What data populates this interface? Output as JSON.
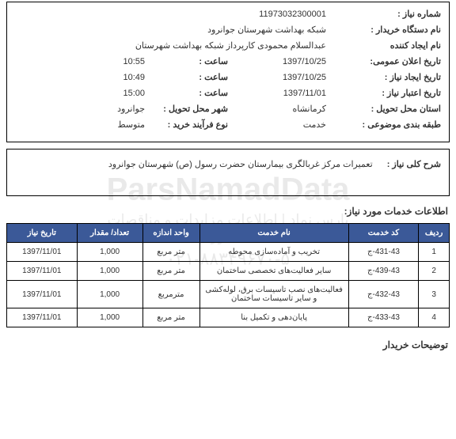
{
  "watermark": {
    "title": "ParsNamadData",
    "sub": "پارس نماد | اطلاعات مزایدات و مناقصات کشور",
    "phone": "۰۲۱-۸۸۳۴۹۶۷۰-۵"
  },
  "header": {
    "reqNumLabel": "شماره نیاز :",
    "reqNumValue": "11973032300001",
    "buyerOrgLabel": "نام دستگاه خریدار :",
    "buyerOrgValue": "شبکه بهداشت شهرستان جوانرود",
    "creatorLabel": "نام ایجاد کننده",
    "creatorValue": "عبدالسلام محمودی کارپرداز شبکه بهداشت شهرستان",
    "publicDateLabel": "تاریخ اعلان عمومی:",
    "publicDateValue": "1397/10/25",
    "publicTimeLabel": "ساعت :",
    "publicTimeValue": "10:55",
    "createDateLabel": "تاریخ ایجاد نیاز :",
    "createDateValue": "1397/10/25",
    "createTimeLabel": "ساعت :",
    "createTimeValue": "10:49",
    "validDateLabel": "تاریخ اعتبار نیاز :",
    "validDateValue": "1397/11/01",
    "validTimeLabel": "ساعت :",
    "validTimeValue": "15:00",
    "deliveryProvLabel": "استان محل تحویل :",
    "deliveryProvValue": "کرمانشاه",
    "deliveryCityLabel": "شهر محل تحویل :",
    "deliveryCityValue": "جوانرود",
    "categoryLabel": "طبقه بندی موضوعی :",
    "categoryValue": "خدمت",
    "procTypeLabel": "نوع فرآیند خرید :",
    "procTypeValue": "متوسط"
  },
  "description": {
    "label": "شرح کلی نیاز :",
    "value": "تعمیرات مرکز غربالگری بیمارستان حضرت رسول (ص) شهرستان جوانرود"
  },
  "servicesTitle": "اطلاعات خدمات مورد نیاز:",
  "table": {
    "headers": {
      "row": "ردیف",
      "code": "کد خدمت",
      "name": "نام خدمت",
      "unit": "واحد اندازه",
      "qty": "تعداد/ مقدار",
      "date": "تاریخ نیاز"
    },
    "rows": [
      {
        "row": "1",
        "code": "431-43-ج",
        "name": "تخریب و آماده‌سازی محوطه",
        "unit": "متر مربع",
        "qty": "1,000",
        "date": "1397/11/01"
      },
      {
        "row": "2",
        "code": "439-43-ج",
        "name": "سایر فعالیت‌های تخصصی ساختمان",
        "unit": "متر مربع",
        "qty": "1,000",
        "date": "1397/11/01"
      },
      {
        "row": "3",
        "code": "432-43-ج",
        "name": "فعالیت‌های نصب تاسیسات برق، لوله‌کشی و سایر تاسیسات ساختمان",
        "unit": "مترمربع",
        "qty": "1,000",
        "date": "1397/11/01"
      },
      {
        "row": "4",
        "code": "433-43-ج",
        "name": "پایان‌دهی و تکمیل بنا",
        "unit": "متر مربع",
        "qty": "1,000",
        "date": "1397/11/01"
      }
    ]
  },
  "buyerNotesLabel": "توضیحات خریدار"
}
